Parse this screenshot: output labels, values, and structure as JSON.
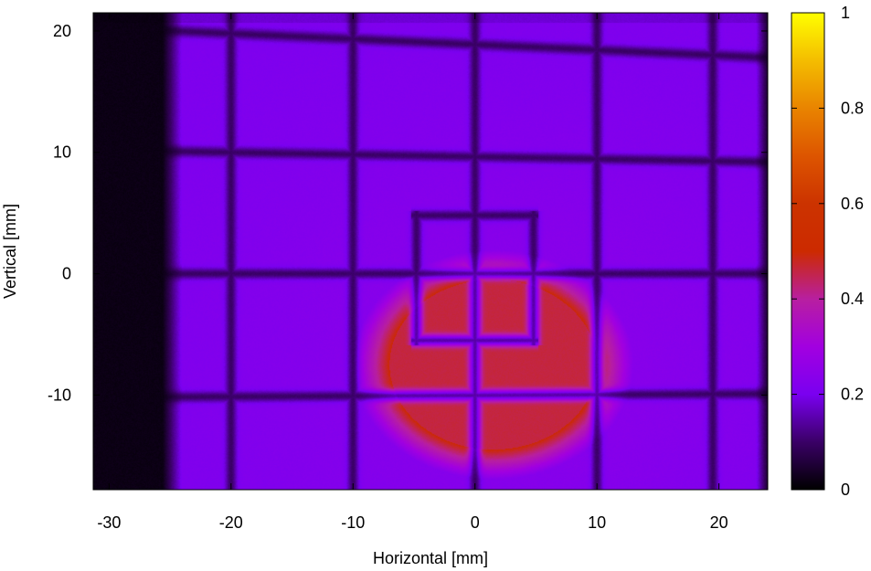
{
  "chart_data": {
    "type": "heatmap",
    "title": "",
    "xlabel": "Horizontal [mm]",
    "ylabel": "Vertical [mm]",
    "xlim": [
      -31.3,
      24.0
    ],
    "ylim": [
      -17.8,
      21.5
    ],
    "x_ticks": [
      -30,
      -20,
      -10,
      0,
      10,
      20
    ],
    "y_ticks": [
      -10,
      0,
      10,
      20
    ],
    "x_tick_labels": [
      "-30",
      "-20",
      "-10",
      "0",
      "10",
      "20"
    ],
    "y_tick_labels": [
      "-10",
      "0",
      "10",
      "20"
    ],
    "colorbar": {
      "range": [
        0,
        1
      ],
      "ticks": [
        0,
        0.2,
        0.4,
        0.6,
        0.8,
        1
      ],
      "tick_labels": [
        "0",
        "0.2",
        "0.4",
        "0.6",
        "0.8",
        "1"
      ],
      "colormap": "gnuplot-pm3d-hot",
      "stops": [
        {
          "v": 0.0,
          "color": "#000000"
        },
        {
          "v": 0.1,
          "color": "#3a0066"
        },
        {
          "v": 0.2,
          "color": "#7a00f0"
        },
        {
          "v": 0.3,
          "color": "#a200e0"
        },
        {
          "v": 0.4,
          "color": "#b81fa0"
        },
        {
          "v": 0.5,
          "color": "#cc2a00"
        },
        {
          "v": 0.6,
          "color": "#cc3300"
        },
        {
          "v": 0.7,
          "color": "#dd5500"
        },
        {
          "v": 0.8,
          "color": "#e98400"
        },
        {
          "v": 0.9,
          "color": "#f4bd00"
        },
        {
          "v": 1.0,
          "color": "#ffff00"
        }
      ]
    },
    "field": {
      "background_level": 0.21,
      "edge_left_dark_from_x": -31.3,
      "edge_left_dark_to_x": -24.0,
      "edge_right_dark_from_x": 23.0,
      "beam_spot": {
        "center_x": 1.5,
        "center_y": -7.5,
        "radius_x": 8.5,
        "radius_y": 7.0,
        "level": 0.46
      },
      "grid_lines_x": [
        -20,
        -10,
        0,
        10,
        19.5
      ],
      "grid_lines_y": [
        {
          "y_left": 20.3,
          "y_right": 17.8
        },
        {
          "y_left": 10.2,
          "y_right": 9.2
        },
        {
          "y_left": 0.0,
          "y_right": 0.0
        },
        {
          "y_left": -10.2,
          "y_right": -9.9
        }
      ],
      "line_level": 0.07,
      "inner_box": {
        "x0": -4.8,
        "x1": 4.8,
        "y0": -5.5,
        "y1": 4.8
      }
    }
  }
}
